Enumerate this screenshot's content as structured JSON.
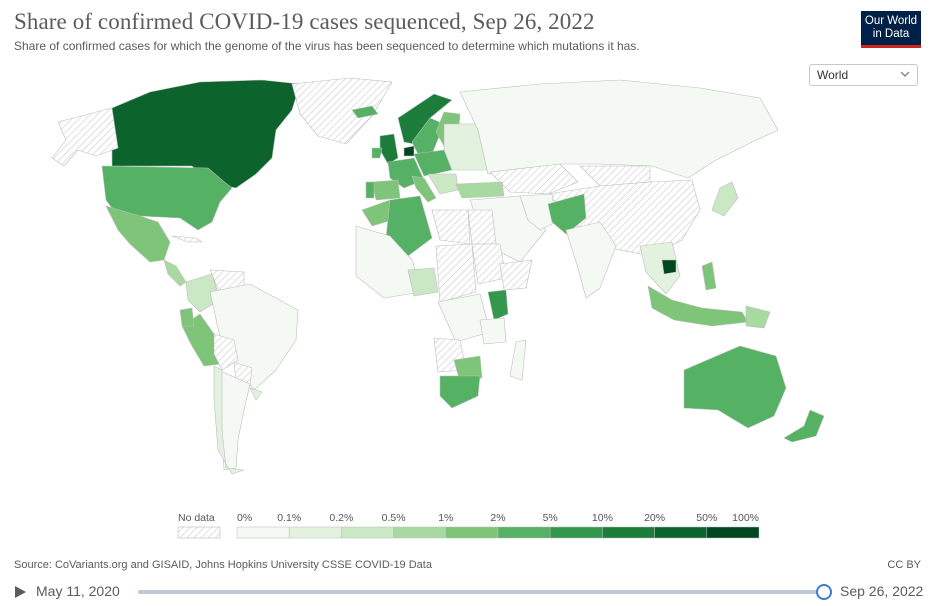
{
  "header": {
    "title": "Share of confirmed COVID-19 cases sequenced, Sep 26, 2022",
    "subtitle": "Share of confirmed cases for which the genome of the virus has been sequenced to determine which mutations it has."
  },
  "logo": {
    "line1": "Our World",
    "line2": "in Data"
  },
  "region_select": {
    "value": "World"
  },
  "colors": {
    "no_data": "#ffffff",
    "bins": [
      "#f4faf3",
      "#e2f2df",
      "#c9e8c3",
      "#a8d9a0",
      "#7ec57a",
      "#55b163",
      "#33984c",
      "#1b7d39",
      "#0c632c",
      "#00461f"
    ]
  },
  "legend": {
    "no_data_label": "No data",
    "ticks": [
      "0%",
      "0.1%",
      "0.2%",
      "0.5%",
      "1%",
      "2%",
      "5%",
      "10%",
      "20%",
      "50%",
      "100%"
    ]
  },
  "map": {
    "countries": [
      {
        "name": "Canada",
        "bin": 8
      },
      {
        "name": "Alaska",
        "bin": -1
      },
      {
        "name": "Greenland",
        "bin": -1
      },
      {
        "name": "United States",
        "bin": 5
      },
      {
        "name": "Mexico",
        "bin": 4
      },
      {
        "name": "Central America",
        "bin": 3
      },
      {
        "name": "Cuba",
        "bin": -1
      },
      {
        "name": "Colombia",
        "bin": 2
      },
      {
        "name": "Venezuela",
        "bin": -1
      },
      {
        "name": "Peru",
        "bin": 4
      },
      {
        "name": "Ecuador",
        "bin": 4
      },
      {
        "name": "Brazil",
        "bin": 0
      },
      {
        "name": "Bolivia",
        "bin": -1
      },
      {
        "name": "Paraguay",
        "bin": -1
      },
      {
        "name": "Argentina",
        "bin": 0
      },
      {
        "name": "Chile",
        "bin": 1
      },
      {
        "name": "Uruguay",
        "bin": 1
      },
      {
        "name": "Iceland",
        "bin": 5
      },
      {
        "name": "Norway",
        "bin": 7
      },
      {
        "name": "Sweden",
        "bin": 5
      },
      {
        "name": "Finland",
        "bin": 4
      },
      {
        "name": "Denmark",
        "bin": 9
      },
      {
        "name": "United Kingdom",
        "bin": 7
      },
      {
        "name": "Ireland",
        "bin": 5
      },
      {
        "name": "Western Europe",
        "bin": 5
      },
      {
        "name": "Spain",
        "bin": 4
      },
      {
        "name": "Portugal",
        "bin": 5
      },
      {
        "name": "Italy",
        "bin": 4
      },
      {
        "name": "Central Europe",
        "bin": 5
      },
      {
        "name": "Eastern Europe",
        "bin": 1
      },
      {
        "name": "Balkans",
        "bin": 2
      },
      {
        "name": "Russia",
        "bin": 0
      },
      {
        "name": "Kazakhstan",
        "bin": -1
      },
      {
        "name": "Mongolia",
        "bin": -1
      },
      {
        "name": "China",
        "bin": -1
      },
      {
        "name": "Japan",
        "bin": 2
      },
      {
        "name": "Turkey",
        "bin": 3
      },
      {
        "name": "Middle East",
        "bin": 0
      },
      {
        "name": "Iran",
        "bin": 0
      },
      {
        "name": "Pakistan",
        "bin": 5
      },
      {
        "name": "India",
        "bin": 0
      },
      {
        "name": "Southeast Asia",
        "bin": 1
      },
      {
        "name": "Cambodia",
        "bin": 9
      },
      {
        "name": "Indonesia",
        "bin": 4
      },
      {
        "name": "Philippines",
        "bin": 4
      },
      {
        "name": "Papua New Guinea",
        "bin": 3
      },
      {
        "name": "Australia",
        "bin": 5
      },
      {
        "name": "New Zealand",
        "bin": 5
      },
      {
        "name": "Morocco",
        "bin": 4
      },
      {
        "name": "Algeria",
        "bin": 5
      },
      {
        "name": "Libya",
        "bin": -1
      },
      {
        "name": "Egypt",
        "bin": -1
      },
      {
        "name": "West Africa",
        "bin": 0
      },
      {
        "name": "Nigeria",
        "bin": 2
      },
      {
        "name": "Central Africa",
        "bin": -1
      },
      {
        "name": "Sudan",
        "bin": -1
      },
      {
        "name": "Ethiopia",
        "bin": -1
      },
      {
        "name": "Kenya",
        "bin": 6
      },
      {
        "name": "DR Congo",
        "bin": 0
      },
      {
        "name": "Angola",
        "bin": -1
      },
      {
        "name": "Tanzania",
        "bin": 0
      },
      {
        "name": "Zimbabwe",
        "bin": 4
      },
      {
        "name": "South Africa",
        "bin": 5
      },
      {
        "name": "Madagascar",
        "bin": 0
      }
    ]
  },
  "footer": {
    "source": "Source: CoVariants.org and GISAID, Johns Hopkins University CSSE COVID-19 Data",
    "license": "CC BY"
  },
  "timeline": {
    "start_date": "May 11, 2020",
    "end_date": "Sep 26, 2022",
    "progress": 1.0
  }
}
